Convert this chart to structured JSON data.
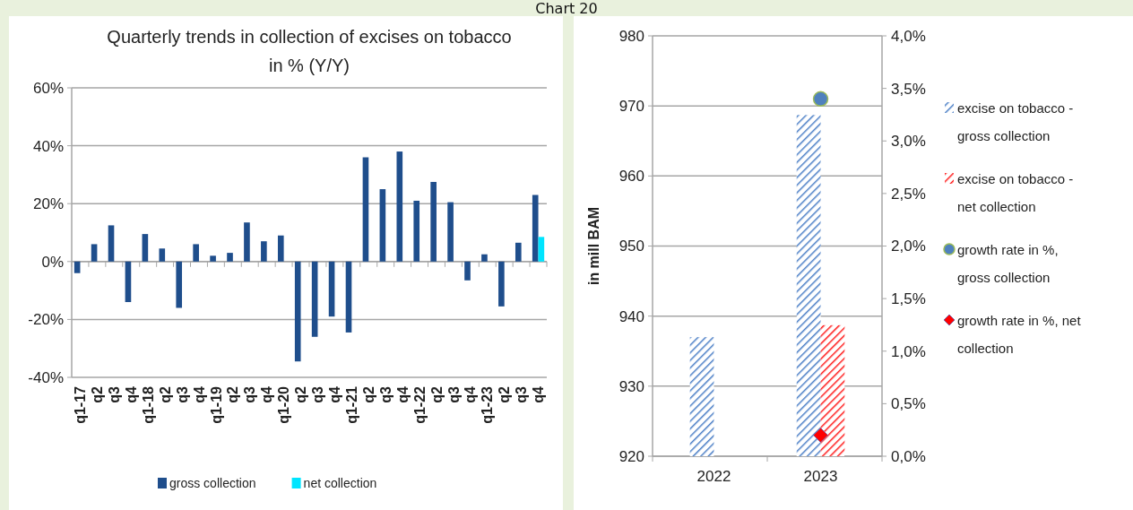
{
  "chart_data": [
    {
      "type": "bar",
      "title": "Quarterly trends in collection of excises on tobacco\nin % (Y/Y)",
      "annotations": [
        "Chart 20"
      ],
      "categories": [
        "q1-17",
        "q2",
        "q3",
        "q4",
        "q1-18",
        "q2",
        "q3",
        "q4",
        "q1-19",
        "q2",
        "q3",
        "q4",
        "q1-20",
        "q2",
        "q3",
        "q4",
        "q1-21",
        "q2",
        "q3",
        "q4",
        "q1-22",
        "q2",
        "q3",
        "q4",
        "q1-23",
        "q2",
        "q3",
        "q4"
      ],
      "series": [
        {
          "name": "gross collection",
          "color": "#1f4e8c",
          "values": [
            -4,
            6,
            12.5,
            -14,
            9.5,
            4.5,
            -16,
            6,
            2,
            3,
            13.5,
            7,
            9,
            -34.5,
            -26,
            -19,
            -24.5,
            36,
            25,
            38,
            21,
            27.5,
            20.5,
            -6.5,
            2.5,
            -15.5,
            6.5,
            23
          ]
        },
        {
          "name": "net collection",
          "color": "#00e5ff",
          "values": [
            null,
            null,
            null,
            null,
            null,
            null,
            null,
            null,
            null,
            null,
            null,
            null,
            null,
            null,
            null,
            null,
            null,
            null,
            null,
            null,
            null,
            null,
            null,
            null,
            null,
            null,
            null,
            8.5
          ]
        }
      ],
      "ylim": [
        -40,
        60
      ],
      "yticks": [
        {
          "value": -40,
          "label": "-40%"
        },
        {
          "value": -20,
          "label": "-20%"
        },
        {
          "value": 0,
          "label": "0%"
        },
        {
          "value": 20,
          "label": "20%"
        },
        {
          "value": 40,
          "label": "40%"
        },
        {
          "value": 60,
          "label": "60%"
        }
      ],
      "grid": "y",
      "legend": "bottom"
    },
    {
      "type": "bar",
      "ylabel": "in mill BAM",
      "categories": [
        "2022",
        "2023"
      ],
      "series": [
        {
          "name": "excise on tobacco - gross collection",
          "color": "#4a7ec6",
          "values": [
            937,
            968.7
          ]
        },
        {
          "name": "excise on tobacco - net collection",
          "color": "#ff1a1a",
          "values": [
            null,
            938.7
          ]
        },
        {
          "name": "growth rate in %, gross collection",
          "type": "scatter",
          "axis": "y2",
          "marker": "circle",
          "color": "#4f81bd",
          "values": [
            null,
            3.4
          ]
        },
        {
          "name": "growth rate in %, net collection",
          "type": "scatter",
          "axis": "y2",
          "marker": "diamond",
          "color": "#ff0000",
          "values": [
            null,
            0.2
          ]
        }
      ],
      "ylim": [
        920,
        980
      ],
      "yticks": [
        920,
        930,
        940,
        950,
        960,
        970,
        980
      ],
      "y2lim": [
        0,
        4
      ],
      "y2ticks": [
        {
          "value": 0,
          "label": "0,0%"
        },
        {
          "value": 0.5,
          "label": "0,5%"
        },
        {
          "value": 1,
          "label": "1,0%"
        },
        {
          "value": 1.5,
          "label": "1,5%"
        },
        {
          "value": 2,
          "label": "2,0%"
        },
        {
          "value": 2.5,
          "label": "2,5%"
        },
        {
          "value": 3,
          "label": "3,0%"
        },
        {
          "value": 3.5,
          "label": "3,5%"
        },
        {
          "value": 4,
          "label": "4,0%"
        }
      ],
      "grid": "y",
      "legend": "right"
    }
  ]
}
